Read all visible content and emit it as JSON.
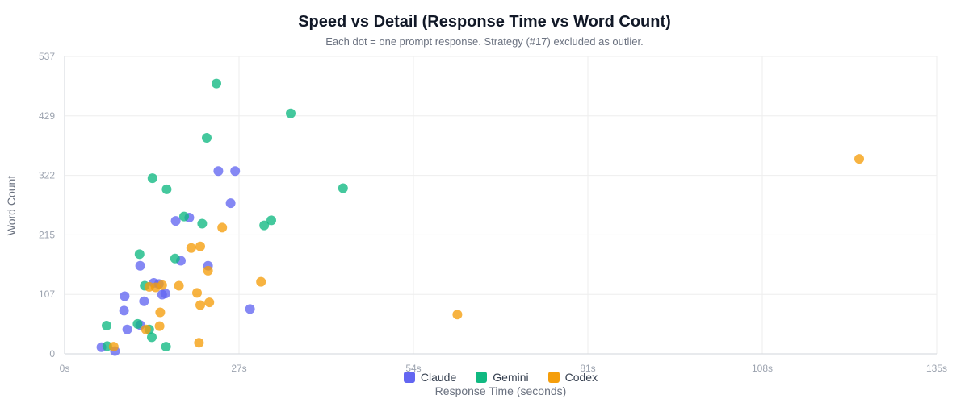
{
  "chart_data": {
    "type": "scatter",
    "title": "Speed vs Detail (Response Time vs Word Count)",
    "subtitle": "Each dot = one prompt response. Strategy (#17) excluded as outlier.",
    "xlabel": "Response Time (seconds)",
    "ylabel": "Word Count",
    "xlim": [
      0,
      135
    ],
    "ylim": [
      0,
      537
    ],
    "x_ticks": [
      "0s",
      "27s",
      "54s",
      "81s",
      "108s",
      "135s"
    ],
    "y_ticks": [
      "0",
      "107",
      "215",
      "322",
      "429",
      "537"
    ],
    "grid": true,
    "legend_position": "bottom",
    "series": [
      {
        "name": "Claude",
        "color": "#6366f1",
        "points": [
          [
            5.7,
            12
          ],
          [
            7.8,
            5
          ],
          [
            9.3,
            104
          ],
          [
            9.2,
            78
          ],
          [
            9.7,
            44
          ],
          [
            11.7,
            52
          ],
          [
            11.7,
            159
          ],
          [
            12.3,
            95
          ],
          [
            13.8,
            128
          ],
          [
            14.6,
            126
          ],
          [
            15.1,
            107
          ],
          [
            15.6,
            109
          ],
          [
            17.2,
            240
          ],
          [
            18.0,
            168
          ],
          [
            19.3,
            246
          ],
          [
            22.2,
            159
          ],
          [
            23.8,
            330
          ],
          [
            25.7,
            272
          ],
          [
            26.4,
            330
          ],
          [
            28.7,
            81
          ]
        ]
      },
      {
        "name": "Gemini",
        "color": "#10b981",
        "points": [
          [
            6.5,
            51
          ],
          [
            6.6,
            14
          ],
          [
            11.3,
            54
          ],
          [
            11.6,
            180
          ],
          [
            12.4,
            123
          ],
          [
            13.1,
            44
          ],
          [
            13.5,
            30
          ],
          [
            13.6,
            317
          ],
          [
            15.7,
            13
          ],
          [
            15.8,
            297
          ],
          [
            17.1,
            172
          ],
          [
            18.5,
            248
          ],
          [
            21.3,
            235
          ],
          [
            22.0,
            390
          ],
          [
            23.5,
            488
          ],
          [
            30.9,
            232
          ],
          [
            32.0,
            241
          ],
          [
            35.0,
            434
          ],
          [
            43.1,
            299
          ]
        ]
      },
      {
        "name": "Codex",
        "color": "#f59e0b",
        "points": [
          [
            7.6,
            13
          ],
          [
            12.6,
            44
          ],
          [
            13.1,
            121
          ],
          [
            14.1,
            120
          ],
          [
            14.8,
            75
          ],
          [
            14.7,
            50
          ],
          [
            15.1,
            124
          ],
          [
            17.7,
            123
          ],
          [
            19.6,
            191
          ],
          [
            20.5,
            110
          ],
          [
            20.8,
            20
          ],
          [
            21.0,
            88
          ],
          [
            21.0,
            194
          ],
          [
            22.2,
            150
          ],
          [
            22.4,
            93
          ],
          [
            24.4,
            228
          ],
          [
            30.4,
            130
          ],
          [
            60.8,
            71
          ],
          [
            123.0,
            352
          ]
        ]
      }
    ]
  }
}
